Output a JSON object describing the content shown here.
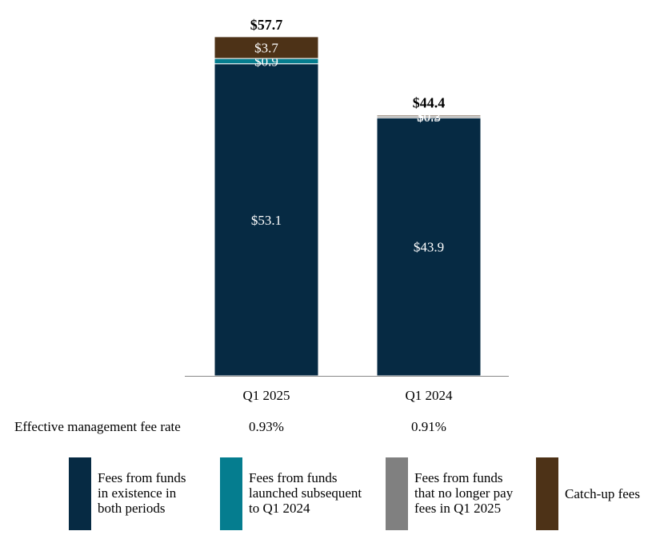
{
  "chart_data": {
    "type": "bar",
    "stacked": true,
    "units": "$",
    "categories": [
      "Q1 2025",
      "Q1 2024"
    ],
    "totals": [
      57.7,
      44.4
    ],
    "total_labels": [
      "$57.7",
      "$44.4"
    ],
    "series": [
      {
        "key": "existing",
        "name": "Fees from funds in existence in both periods",
        "legend_lines": [
          "Fees from funds",
          "in existence in",
          "both periods"
        ],
        "color": "#062a43",
        "values": [
          53.1,
          43.9
        ],
        "labels": [
          "$53.1",
          "$43.9"
        ]
      },
      {
        "key": "no_longer",
        "name": "Fees from funds that no longer pay fees in Q1 2025",
        "legend_lines": [
          "Fees from funds",
          "that no longer pay",
          "fees in Q1 2025"
        ],
        "color": "#808080",
        "values": [
          0,
          0.3
        ],
        "labels": [
          "",
          "$0.3"
        ]
      },
      {
        "key": "launched",
        "name": "Fees from funds launched subsequent to Q1 2024",
        "legend_lines": [
          "Fees from funds",
          "launched subsequent",
          "to Q1 2024"
        ],
        "color": "#057d8f",
        "values": [
          0.9,
          0
        ],
        "labels": [
          "$0.9",
          ""
        ]
      },
      {
        "key": "catchup",
        "name": "Catch-up fees",
        "legend_lines": [
          "Catch-up fees"
        ],
        "color": "#4d3217",
        "values": [
          3.7,
          0.2
        ],
        "labels": [
          "$3.7",
          "$0.2"
        ]
      }
    ],
    "legend_order": [
      "existing",
      "launched",
      "no_longer",
      "catchup"
    ],
    "ylim": [
      0,
      60
    ],
    "xlabel": "",
    "ylabel": "",
    "title": ""
  },
  "rates": {
    "label": "Effective management fee rate",
    "values": [
      "0.93%",
      "0.91%"
    ]
  }
}
